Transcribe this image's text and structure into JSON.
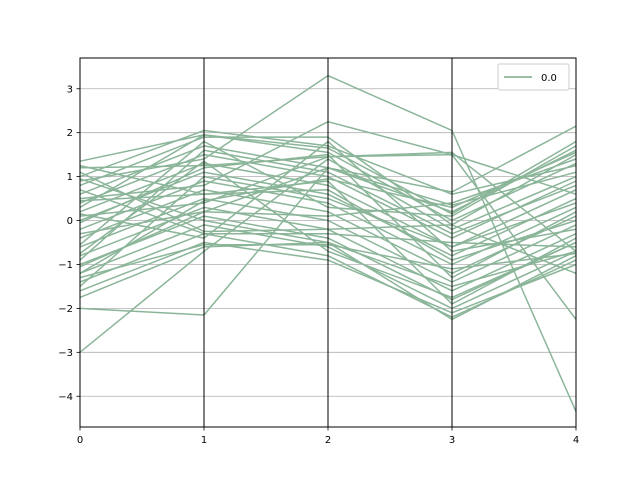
{
  "chart_data": {
    "type": "parallel_coordinates",
    "x": [
      0,
      1,
      2,
      3,
      4
    ],
    "x_ticks": [
      "0",
      "1",
      "2",
      "3",
      "4"
    ],
    "y_ticks": [
      "−4",
      "−3",
      "−2",
      "−1",
      "0",
      "1",
      "2",
      "3"
    ],
    "ylim": [
      -4.7,
      3.7
    ],
    "xlim": [
      0,
      4
    ],
    "grid": "horizontal",
    "legend": {
      "position": "top-right",
      "entries": [
        {
          "label": "0.0",
          "color": "#8bb599"
        }
      ]
    },
    "series_color": "#8bb599",
    "series": [
      {
        "name": "0.0",
        "values": [
          1.35,
          1.95,
          1.65,
          0.15,
          1.8
        ]
      },
      {
        "name": "0.0",
        "values": [
          1.2,
          1.25,
          1.45,
          1.5,
          0.6
        ]
      },
      {
        "name": "0.0",
        "values": [
          1.0,
          2.05,
          1.7,
          0.6,
          1.25
        ]
      },
      {
        "name": "0.0",
        "values": [
          0.8,
          1.9,
          1.9,
          -0.1,
          1.5
        ]
      },
      {
        "name": "0.0",
        "values": [
          0.6,
          1.7,
          1.2,
          0.35,
          1.1
        ]
      },
      {
        "name": "0.0",
        "values": [
          0.4,
          1.5,
          1.0,
          -0.4,
          0.9
        ]
      },
      {
        "name": "0.0",
        "values": [
          0.2,
          1.3,
          0.8,
          -0.6,
          0.7
        ]
      },
      {
        "name": "0.0",
        "values": [
          0.0,
          1.1,
          0.6,
          -0.8,
          0.5
        ]
      },
      {
        "name": "0.0",
        "values": [
          -0.2,
          0.9,
          0.4,
          -1.0,
          0.3
        ]
      },
      {
        "name": "0.0",
        "values": [
          -0.4,
          0.7,
          0.2,
          -1.2,
          0.1
        ]
      },
      {
        "name": "0.0",
        "values": [
          -0.6,
          0.5,
          0.0,
          -1.4,
          -0.1
        ]
      },
      {
        "name": "0.0",
        "values": [
          -0.8,
          0.3,
          -0.2,
          -1.6,
          -0.3
        ]
      },
      {
        "name": "0.0",
        "values": [
          -1.0,
          0.1,
          -0.4,
          -1.8,
          -0.5
        ]
      },
      {
        "name": "0.0",
        "values": [
          -1.2,
          -0.1,
          -0.6,
          -2.0,
          -0.7
        ]
      },
      {
        "name": "0.0",
        "values": [
          -1.4,
          -0.3,
          -0.8,
          -2.2,
          -0.9
        ]
      },
      {
        "name": "0.0",
        "values": [
          -1.6,
          -0.5,
          -0.9,
          -2.1,
          -1.0
        ]
      },
      {
        "name": "0.0",
        "values": [
          0.9,
          1.4,
          3.3,
          2.05,
          -4.35
        ]
      },
      {
        "name": "0.0",
        "values": [
          0.5,
          0.8,
          2.25,
          1.5,
          -2.25
        ]
      },
      {
        "name": "0.0",
        "values": [
          0.1,
          0.4,
          1.45,
          1.55,
          -0.7
        ]
      },
      {
        "name": "0.0",
        "values": [
          -0.3,
          0.2,
          1.2,
          0.65,
          2.15
        ]
      },
      {
        "name": "0.0",
        "values": [
          -2.0,
          -2.15,
          1.2,
          0.2,
          1.6
        ]
      },
      {
        "name": "0.0",
        "values": [
          -3.0,
          -0.7,
          1.4,
          -0.2,
          1.0
        ]
      },
      {
        "name": "0.0",
        "values": [
          -1.75,
          -0.6,
          -0.5,
          -1.5,
          -0.7
        ]
      },
      {
        "name": "0.0",
        "values": [
          -1.3,
          -0.55,
          -0.55,
          -1.1,
          -0.75
        ]
      },
      {
        "name": "0.0",
        "values": [
          1.1,
          -0.25,
          -0.2,
          -0.1,
          -1.2
        ]
      },
      {
        "name": "0.0",
        "values": [
          0.7,
          -0.3,
          -0.3,
          -0.5,
          -0.6
        ]
      },
      {
        "name": "0.0",
        "values": [
          0.3,
          1.95,
          1.55,
          0.0,
          1.3
        ]
      },
      {
        "name": "0.0",
        "values": [
          -0.9,
          1.6,
          1.1,
          -0.3,
          0.8
        ]
      },
      {
        "name": "0.0",
        "values": [
          -1.5,
          1.0,
          0.5,
          -0.6,
          0.4
        ]
      },
      {
        "name": "0.0",
        "values": [
          0.95,
          0.0,
          -0.5,
          -2.25,
          -0.8
        ]
      },
      {
        "name": "0.0",
        "values": [
          0.45,
          0.6,
          0.9,
          -1.9,
          -0.4
        ]
      },
      {
        "name": "0.0",
        "values": [
          -0.05,
          1.2,
          1.5,
          -1.3,
          0.2
        ]
      },
      {
        "name": "0.0",
        "values": [
          -0.55,
          1.8,
          0.3,
          0.1,
          1.7
        ]
      },
      {
        "name": "0.0",
        "values": [
          -1.05,
          0.2,
          0.1,
          0.4,
          1.4
        ]
      },
      {
        "name": "0.0",
        "values": [
          1.25,
          0.6,
          0.7,
          -0.9,
          0.0
        ]
      },
      {
        "name": "0.0",
        "values": [
          0.15,
          -0.4,
          1.8,
          -0.7,
          -0.2
        ]
      },
      {
        "name": "0.0",
        "values": [
          -0.75,
          1.35,
          -0.7,
          -1.75,
          -0.5
        ]
      },
      {
        "name": "0.0",
        "values": [
          -1.2,
          0.45,
          0.95,
          0.3,
          1.55
        ]
      }
    ]
  }
}
